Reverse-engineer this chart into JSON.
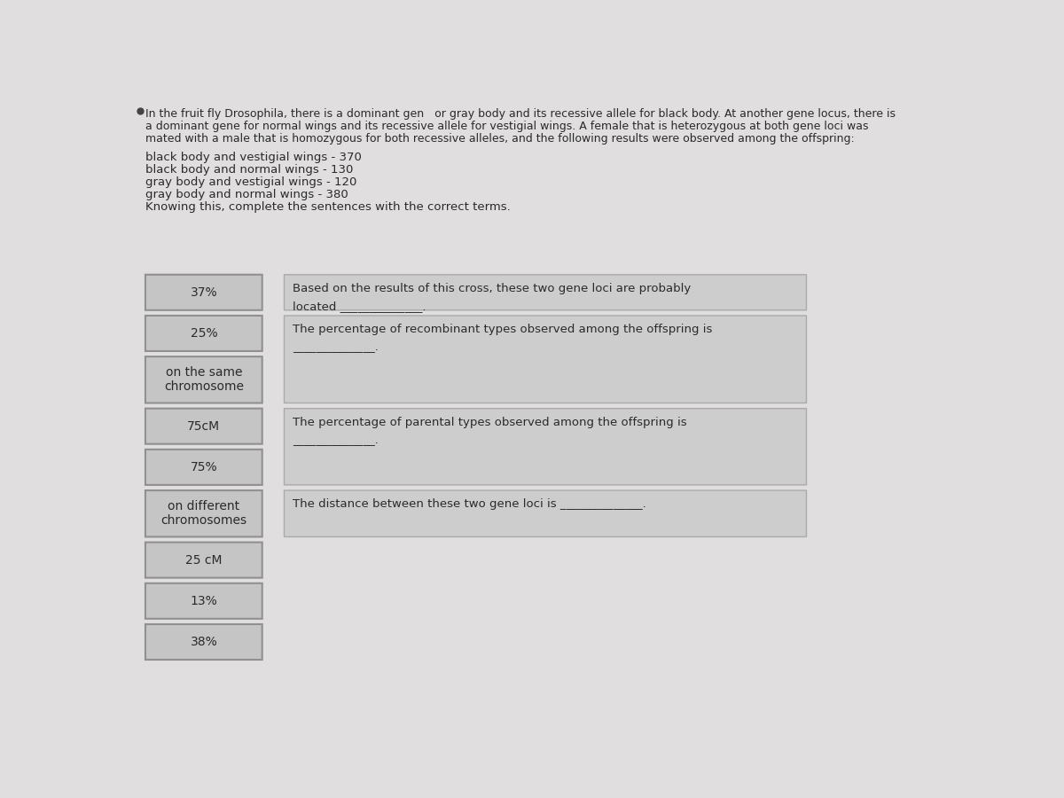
{
  "bg_color": "#e0dede",
  "intro_text_line1": "In the fruit fly Drosophila, there is a dominant gen   or gray body and its recessive allele for black body. At another gene locus, there is",
  "intro_text_line2": "a dominant gene for normal wings and its recessive allele for vestigial wings. A female that is heterozygous at both gene loci was",
  "intro_text_line3": "mated with a male that is homozygous for both recessive alleles, and the following results were observed among the offspring:",
  "data_lines": [
    "black body and vestigial wings - 370",
    "black body and normal wings - 130",
    "gray body and vestigial wings - 120",
    "gray body and normal wings - 380",
    "Knowing this, complete the sentences with the correct terms."
  ],
  "left_buttons": [
    {
      "label": "37%",
      "two_line": false
    },
    {
      "label": "25%",
      "two_line": false
    },
    {
      "label": "on the same\nchromosome",
      "two_line": true
    },
    {
      "label": "75cM",
      "two_line": false
    },
    {
      "label": "75%",
      "two_line": false
    },
    {
      "label": "on different\nchromosomes",
      "two_line": true
    },
    {
      "label": "25 cM",
      "two_line": false
    },
    {
      "label": "13%",
      "two_line": false
    },
    {
      "label": "38%",
      "two_line": false
    }
  ],
  "right_boxes": [
    {
      "text_line1": "Based on the results of this cross, these two gene loci are probably",
      "text_line2": "located ______________.",
      "has_underline": false
    },
    {
      "text_line1": "The percentage of recombinant types observed among the offspring is",
      "text_line2": "______________.",
      "has_underline": false
    },
    {
      "text_line1": "The percentage of parental types observed among the offspring is",
      "text_line2": "______________.",
      "has_underline": false
    },
    {
      "text_line1": "The distance between these two gene loci is ______________.",
      "text_line2": "",
      "has_underline": false
    }
  ],
  "button_box_color": "#c5c5c5",
  "button_border_color": "#909090",
  "right_box_color": "#cdcdcd",
  "right_box_border": "#aaaaaa",
  "text_color": "#2a2a2a",
  "font_size_intro": 9.0,
  "font_size_data": 9.5,
  "font_size_button": 10.0,
  "font_size_right": 9.5
}
